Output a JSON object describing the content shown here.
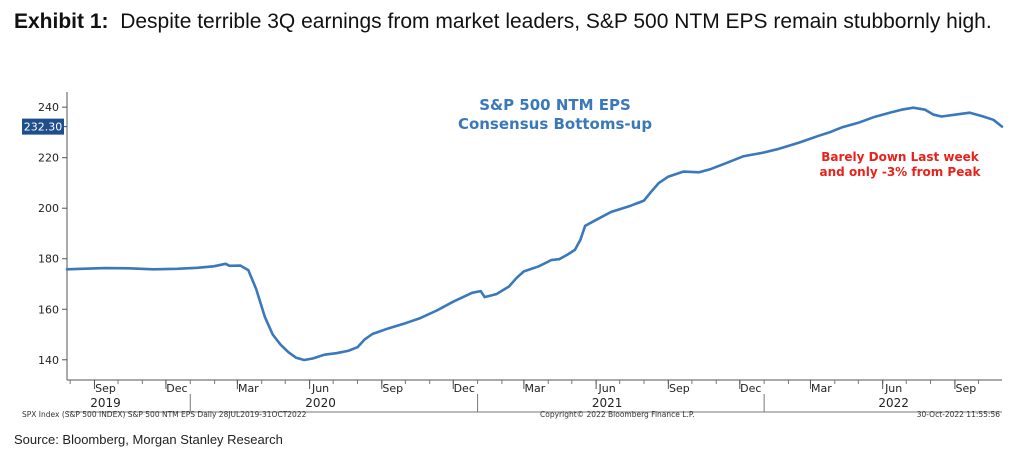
{
  "exhibit": {
    "label": "Exhibit 1:",
    "text": "Despite terrible 3Q earnings from market leaders, S&P 500 NTM EPS remain stubbornly high."
  },
  "chart_data": {
    "type": "line",
    "title": "S&P 500 NTM EPS",
    "subtitle": "Consensus Bottoms-up",
    "xlabel": "",
    "ylabel": "",
    "ylim": [
      132,
      246
    ],
    "yticks": [
      140,
      160,
      180,
      200,
      220,
      240
    ],
    "last_value_label": "232.30",
    "last_value": 232.3,
    "annotation": [
      "Barely Down Last week",
      "and only -3% from Peak"
    ],
    "x_months": [
      "Sep",
      "Dec",
      "Mar",
      "Jun",
      "Sep",
      "Dec",
      "Mar",
      "Jun",
      "Sep",
      "Dec",
      "Mar",
      "Jun",
      "Sep"
    ],
    "x_years": [
      {
        "label": "2019",
        "at_month": "2019-09"
      },
      {
        "label": "2020",
        "at_month": "2020-06"
      },
      {
        "label": "2021",
        "at_month": "2021-06"
      },
      {
        "label": "2022",
        "at_month": "2022-06"
      }
    ],
    "x_range": [
      "2019-07-28",
      "2022-10-31"
    ],
    "month_ticks": [
      "2019-09",
      "2019-12",
      "2020-03",
      "2020-06",
      "2020-09",
      "2020-12",
      "2021-03",
      "2021-06",
      "2021-09",
      "2021-12",
      "2022-03",
      "2022-06",
      "2022-09"
    ],
    "series": [
      {
        "name": "S&P 500 NTM EPS",
        "color": "#3A78BC",
        "points": [
          [
            "2019-07-28",
            175.8
          ],
          [
            "2019-08-15",
            176.0
          ],
          [
            "2019-09-15",
            176.3
          ],
          [
            "2019-10-15",
            176.2
          ],
          [
            "2019-11-15",
            175.8
          ],
          [
            "2019-12-15",
            176.0
          ],
          [
            "2020-01-10",
            176.4
          ],
          [
            "2020-01-31",
            177.0
          ],
          [
            "2020-02-15",
            178.0
          ],
          [
            "2020-02-20",
            177.2
          ],
          [
            "2020-03-05",
            177.3
          ],
          [
            "2020-03-15",
            175.5
          ],
          [
            "2020-03-25",
            168.0
          ],
          [
            "2020-04-05",
            157.0
          ],
          [
            "2020-04-15",
            150.0
          ],
          [
            "2020-04-25",
            146.0
          ],
          [
            "2020-05-05",
            143.0
          ],
          [
            "2020-05-15",
            140.8
          ],
          [
            "2020-05-25",
            139.9
          ],
          [
            "2020-06-05",
            140.5
          ],
          [
            "2020-06-20",
            142.0
          ],
          [
            "2020-07-05",
            142.6
          ],
          [
            "2020-07-20",
            143.5
          ],
          [
            "2020-08-01",
            145.0
          ],
          [
            "2020-08-10",
            148.0
          ],
          [
            "2020-08-20",
            150.2
          ],
          [
            "2020-09-10",
            152.5
          ],
          [
            "2020-10-01",
            154.5
          ],
          [
            "2020-10-20",
            156.5
          ],
          [
            "2020-11-10",
            159.5
          ],
          [
            "2020-12-01",
            163.0
          ],
          [
            "2020-12-25",
            166.5
          ],
          [
            "2021-01-05",
            167.2
          ],
          [
            "2021-01-10",
            164.8
          ],
          [
            "2021-01-25",
            166.0
          ],
          [
            "2021-02-10",
            169.0
          ],
          [
            "2021-02-20",
            172.5
          ],
          [
            "2021-03-01",
            175.0
          ],
          [
            "2021-03-20",
            177.0
          ],
          [
            "2021-04-05",
            179.5
          ],
          [
            "2021-04-15",
            179.8
          ],
          [
            "2021-04-25",
            181.5
          ],
          [
            "2021-05-05",
            183.5
          ],
          [
            "2021-05-12",
            187.5
          ],
          [
            "2021-05-18",
            193.0
          ],
          [
            "2021-05-31",
            195.2
          ],
          [
            "2021-06-20",
            198.5
          ],
          [
            "2021-07-15",
            201.0
          ],
          [
            "2021-08-01",
            203.0
          ],
          [
            "2021-08-10",
            206.5
          ],
          [
            "2021-08-20",
            210.0
          ],
          [
            "2021-09-01",
            212.5
          ],
          [
            "2021-09-20",
            214.5
          ],
          [
            "2021-10-10",
            214.2
          ],
          [
            "2021-10-25",
            215.5
          ],
          [
            "2021-11-15",
            218.0
          ],
          [
            "2021-12-05",
            220.5
          ],
          [
            "2021-12-31",
            222.0
          ],
          [
            "2022-01-20",
            223.5
          ],
          [
            "2022-02-15",
            226.0
          ],
          [
            "2022-03-10",
            228.5
          ],
          [
            "2022-03-25",
            230.0
          ],
          [
            "2022-04-10",
            232.0
          ],
          [
            "2022-05-01",
            233.8
          ],
          [
            "2022-05-20",
            236.0
          ],
          [
            "2022-06-10",
            237.8
          ],
          [
            "2022-06-25",
            239.0
          ],
          [
            "2022-07-10",
            239.8
          ],
          [
            "2022-07-25",
            239.0
          ],
          [
            "2022-08-05",
            237.0
          ],
          [
            "2022-08-15",
            236.3
          ],
          [
            "2022-09-01",
            237.0
          ],
          [
            "2022-09-20",
            237.8
          ],
          [
            "2022-10-05",
            236.5
          ],
          [
            "2022-10-20",
            235.0
          ],
          [
            "2022-10-31",
            232.3
          ]
        ]
      }
    ],
    "footer": {
      "left": "SPX Index (S&P 500 INDEX) S&P 500 NTM EPS  Daily 28JUL2019-31OCT2022",
      "center": "Copyright© 2022 Bloomberg Finance L.P.",
      "right": "30-Oct-2022 11:55:56"
    }
  },
  "source": "Source: Bloomberg, Morgan Stanley Research"
}
